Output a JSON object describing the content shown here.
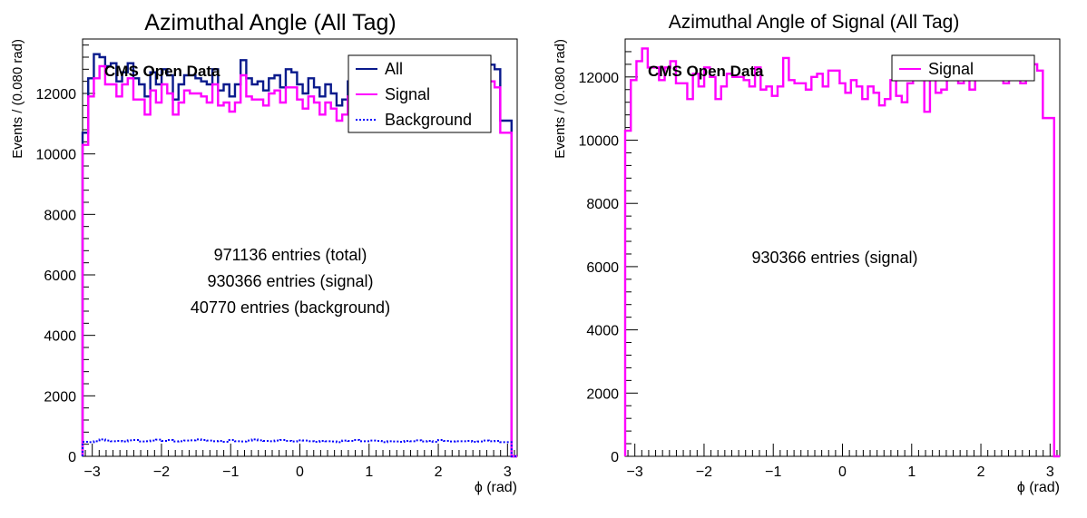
{
  "colors": {
    "all": "#0a1a8c",
    "signal": "#ff00ff",
    "background": "#0000ff"
  },
  "chart_data": [
    {
      "type": "line",
      "title": "Azimuthal Angle (All Tag)",
      "xlabel": "ϕ (rad)",
      "ylabel": "Events / (0.080 rad)",
      "xlim": [
        -3.14,
        3.14
      ],
      "ylim": [
        0,
        13800
      ],
      "xticks": [
        "−3",
        "−2",
        "−1",
        "0",
        "1",
        "2",
        "3"
      ],
      "yticks": [
        "0",
        "2000",
        "4000",
        "6000",
        "8000",
        "10000",
        "12000"
      ],
      "watermark": "CMS Open Data",
      "legend_position": "top-right",
      "annotations": [
        "971136 entries (total)",
        "930366 entries (signal)",
        "40770 entries (background)"
      ],
      "series": [
        {
          "name": "All",
          "style": "solid",
          "color": "#0a1a8c",
          "values": [
            10700,
            12500,
            13300,
            13200,
            12900,
            13000,
            12400,
            12700,
            13000,
            12500,
            12300,
            11900,
            12700,
            12300,
            12800,
            12600,
            11800,
            12300,
            12600,
            12600,
            12500,
            12400,
            12300,
            12800,
            12100,
            12300,
            11900,
            12300,
            13100,
            12500,
            12300,
            12400,
            12100,
            12500,
            12600,
            12200,
            12800,
            12700,
            12300,
            12000,
            12500,
            12200,
            11900,
            12300,
            12000,
            11600,
            11800,
            12400,
            11800,
            11600,
            12300,
            12500,
            12800,
            11400,
            12500,
            12000,
            12100,
            12400,
            12500,
            12300,
            12600,
            12200,
            12600,
            12800,
            12600,
            12700,
            12600,
            12300,
            12600,
            12400,
            12300,
            12900,
            12950,
            12800,
            11100,
            11100,
            0
          ]
        },
        {
          "name": "Signal",
          "style": "solid",
          "color": "#ff00ff",
          "values": [
            10300,
            11900,
            12500,
            12900,
            12300,
            12300,
            11900,
            12300,
            12500,
            11800,
            11800,
            11300,
            12100,
            11700,
            12300,
            12000,
            11300,
            11700,
            12100,
            12000,
            12000,
            11900,
            11700,
            12300,
            11600,
            11700,
            11400,
            11700,
            12600,
            11900,
            11800,
            11800,
            11600,
            12000,
            12100,
            11700,
            12200,
            12200,
            11800,
            11500,
            11900,
            11700,
            11300,
            11700,
            11500,
            11100,
            11300,
            11900,
            11400,
            11200,
            11800,
            12000,
            12200,
            10900,
            12000,
            11500,
            11600,
            11900,
            12000,
            11800,
            12000,
            11600,
            12100,
            12200,
            12000,
            12100,
            12100,
            11800,
            12100,
            11900,
            11800,
            12400,
            12400,
            12200,
            10700,
            10700,
            0
          ]
        },
        {
          "name": "Background",
          "style": "dotted",
          "color": "#0000ff",
          "values": [
            480,
            470,
            500,
            560,
            520,
            500,
            510,
            490,
            530,
            540,
            490,
            500,
            520,
            550,
            510,
            540,
            490,
            500,
            520,
            530,
            560,
            540,
            520,
            500,
            510,
            480,
            540,
            500,
            490,
            520,
            560,
            530,
            510,
            500,
            520,
            540,
            510,
            490,
            530,
            520,
            500,
            480,
            510,
            500,
            490,
            470,
            520,
            510,
            540,
            500,
            500,
            520,
            510,
            470,
            500,
            490,
            480,
            510,
            500,
            530,
            490,
            510,
            480,
            540,
            510,
            490,
            500,
            500,
            510,
            480,
            490,
            520,
            500,
            510,
            470,
            470,
            0
          ]
        }
      ]
    },
    {
      "type": "line",
      "title": "Azimuthal Angle of Signal (All Tag)",
      "xlabel": "ϕ (rad)",
      "ylabel": "Events / (0.080 rad)",
      "xlim": [
        -3.14,
        3.14
      ],
      "ylim": [
        0,
        13200
      ],
      "xticks": [
        "−3",
        "−2",
        "−1",
        "0",
        "1",
        "2",
        "3"
      ],
      "yticks": [
        "0",
        "2000",
        "4000",
        "6000",
        "8000",
        "10000",
        "12000"
      ],
      "watermark": "CMS Open Data",
      "legend_position": "top-right",
      "annotations": [
        "930366 entries (signal)"
      ],
      "series": [
        {
          "name": "Signal",
          "style": "solid",
          "color": "#ff00ff",
          "values": [
            10300,
            11900,
            12500,
            12900,
            12300,
            12300,
            11900,
            12300,
            12500,
            11800,
            11800,
            11300,
            12100,
            11700,
            12300,
            12000,
            11300,
            11700,
            12100,
            12000,
            12000,
            11900,
            11700,
            12300,
            11600,
            11700,
            11400,
            11700,
            12600,
            11900,
            11800,
            11800,
            11600,
            12000,
            12100,
            11700,
            12200,
            12200,
            11800,
            11500,
            11900,
            11700,
            11300,
            11700,
            11500,
            11100,
            11300,
            11900,
            11400,
            11200,
            11800,
            12000,
            12200,
            10900,
            12000,
            11500,
            11600,
            11900,
            12000,
            11800,
            12000,
            11600,
            12100,
            12200,
            12000,
            12100,
            12100,
            11800,
            12100,
            11900,
            11800,
            12400,
            12400,
            12200,
            10700,
            10700,
            0
          ]
        }
      ]
    }
  ]
}
